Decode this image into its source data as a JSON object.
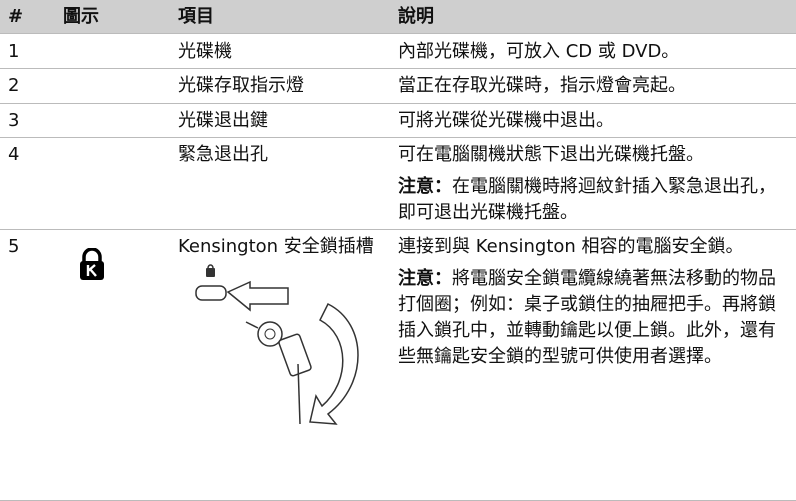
{
  "header": {
    "number": "#",
    "icon": "圖示",
    "item": "項目",
    "description": "說明"
  },
  "rows": [
    {
      "number": "1",
      "item": "光碟機",
      "description": "內部光碟機，可放入 CD 或 DVD。"
    },
    {
      "number": "2",
      "item": "光碟存取指示燈",
      "description": "當正在存取光碟時，指示燈會亮起。"
    },
    {
      "number": "3",
      "item": "光碟退出鍵",
      "description": "可將光碟從光碟機中退出。"
    },
    {
      "number": "4",
      "item": "緊急退出孔",
      "description": "可在電腦關機狀態下退出光碟機托盤。",
      "note_label": "注意：",
      "note": "在電腦關機時將迴紋針插入緊急退出孔，即可退出光碟機托盤。"
    },
    {
      "number": "5",
      "item": "Kensington 安全鎖插槽",
      "description": "連接到與 Kensington 相容的電腦安全鎖。",
      "note_label": "注意：",
      "note": "將電腦安全鎖電纜線繞著無法移動的物品打個圈；例如：桌子或鎖住的抽屜把手。再將鎖插入鎖孔中，並轉動鑰匙以便上鎖。此外，還有些無鑰匙安全鎖的型號可供使用者選擇。"
    }
  ]
}
